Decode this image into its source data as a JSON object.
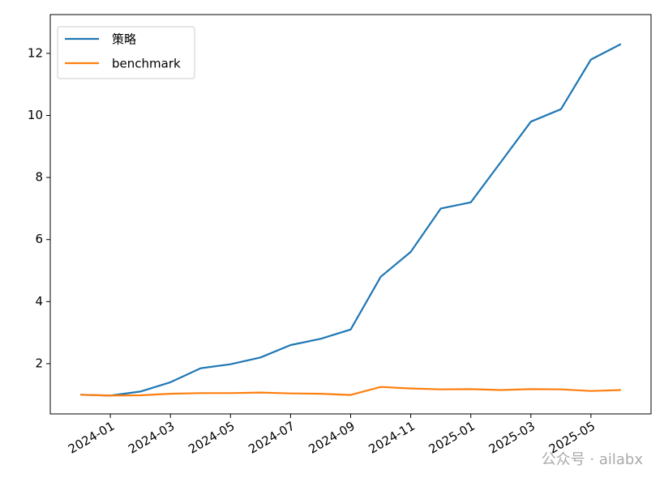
{
  "chart_data": {
    "type": "line",
    "x": [
      "2023-12",
      "2024-01",
      "2024-02",
      "2024-03",
      "2024-04",
      "2024-05",
      "2024-06",
      "2024-07",
      "2024-08",
      "2024-09",
      "2024-10",
      "2024-11",
      "2024-12",
      "2025-01",
      "2025-02",
      "2025-03",
      "2025-04",
      "2025-05",
      "2025-06"
    ],
    "series": [
      {
        "name": "策略",
        "color": "#1f77b4",
        "values": [
          1.0,
          0.97,
          1.1,
          1.4,
          1.85,
          1.98,
          2.2,
          2.6,
          2.8,
          3.1,
          4.8,
          5.6,
          7.0,
          7.2,
          8.5,
          9.8,
          10.2,
          11.8,
          12.3
        ]
      },
      {
        "name": "benchmark",
        "color": "#ff7f0e",
        "values": [
          1.0,
          0.97,
          0.98,
          1.03,
          1.05,
          1.05,
          1.07,
          1.04,
          1.03,
          0.99,
          1.25,
          1.2,
          1.17,
          1.18,
          1.15,
          1.18,
          1.17,
          1.12,
          1.15
        ]
      }
    ],
    "xlim": [
      "2023-11",
      "2025-07"
    ],
    "xticks": [
      "2024-01",
      "2024-03",
      "2024-05",
      "2024-07",
      "2024-09",
      "2024-11",
      "2025-01",
      "2025-03",
      "2025-05"
    ],
    "ylim": [
      0.38,
      13.25
    ],
    "yticks": [
      2,
      4,
      6,
      8,
      10,
      12
    ],
    "legend": "upper-left",
    "watermark": "公众号 · ailabx"
  }
}
